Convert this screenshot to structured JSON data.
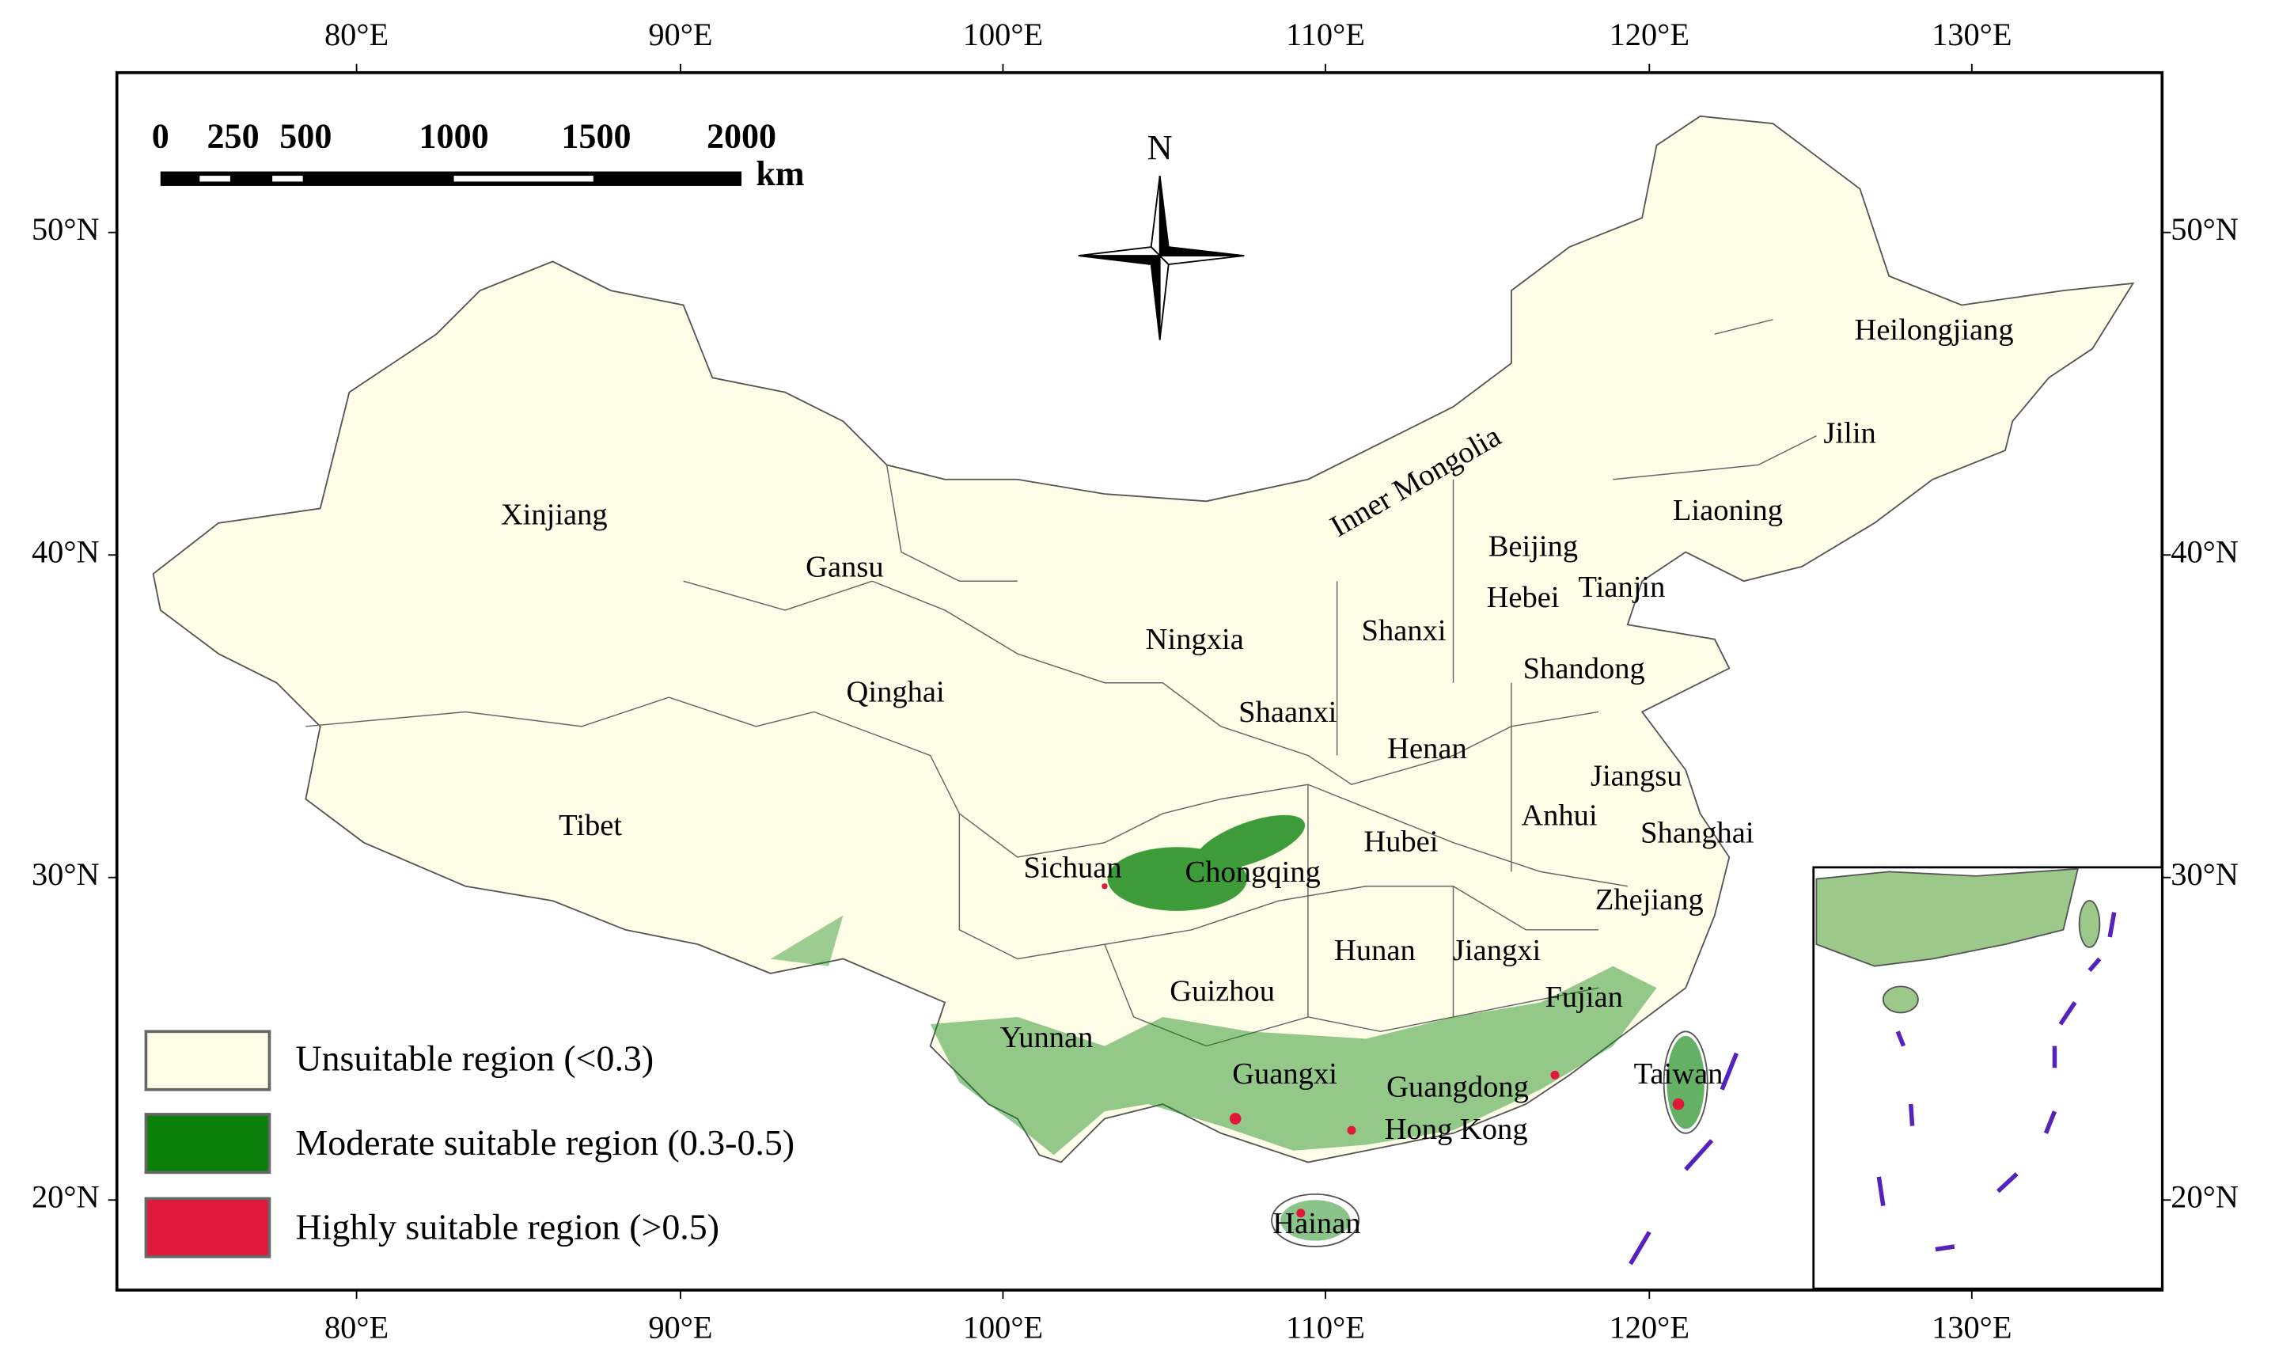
{
  "map": {
    "lon_labels": [
      "80°E",
      "90°E",
      "100°E",
      "110°E",
      "120°E",
      "130°E"
    ],
    "lat_labels": [
      "50°N",
      "40°N",
      "30°N",
      "20°N"
    ],
    "scale_bar": {
      "labels": [
        "0",
        "250",
        "500",
        "1000",
        "1500",
        "2000"
      ],
      "unit": "km"
    },
    "north": "N",
    "provinces": [
      "Xinjiang",
      "Gansu",
      "Qinghai",
      "Tibet",
      "Inner Mongolia",
      "Ningxia",
      "Shaanxi",
      "Shanxi",
      "Beijing",
      "Hebei",
      "Tianjin",
      "Shandong",
      "Henan",
      "Jiangsu",
      "Anhui",
      "Shanghai",
      "Hubei",
      "Sichuan",
      "Chongqing",
      "Zhejiang",
      "Hunan",
      "Jiangxi",
      "Guizhou",
      "Fujian",
      "Yunnan",
      "Guangxi",
      "Guangdong",
      "Taiwan",
      "Hong Kong",
      "Hainan",
      "Liaoning",
      "Jilin",
      "Heilongjiang"
    ],
    "legend": [
      "Unsuitable region (<0.3)",
      "Moderate suitable region (0.3-0.5)",
      "Highly suitable region (>0.5)"
    ]
  }
}
